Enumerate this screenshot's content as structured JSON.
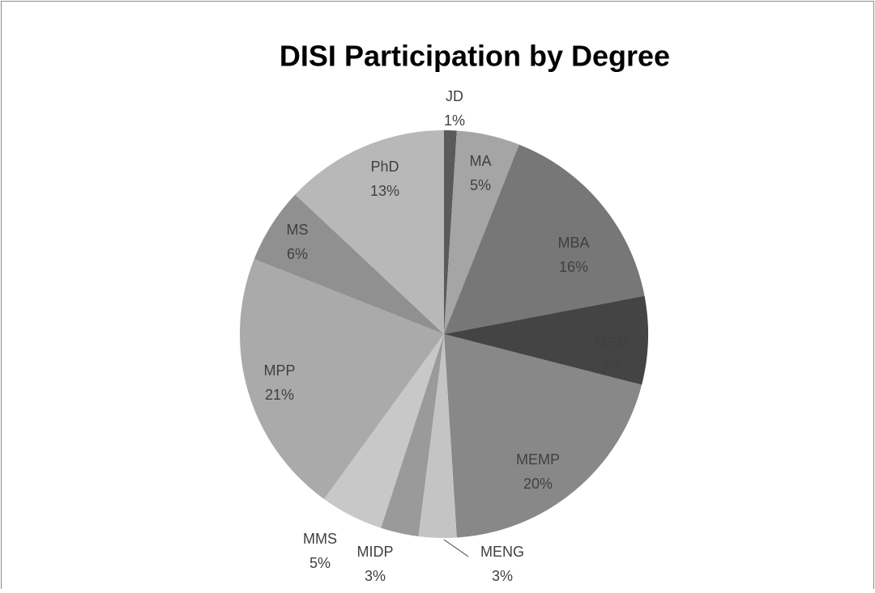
{
  "chart_data": {
    "type": "pie",
    "title": "DISI Participation by Degree",
    "categories": [
      "JD",
      "MA",
      "MBA",
      "MEM",
      "MEMP",
      "MENG",
      "MIDP",
      "MMS",
      "MPP",
      "MS",
      "PhD"
    ],
    "values": [
      1,
      5,
      16,
      7,
      20,
      3,
      3,
      5,
      21,
      6,
      13
    ],
    "value_labels": [
      "1%",
      "5%",
      "16%",
      "7%",
      "20%",
      "3%",
      "3%",
      "5%",
      "21%",
      "6%",
      "13%"
    ],
    "colors": [
      "#5a5a5a",
      "#a5a5a5",
      "#777777",
      "#444444",
      "#888888",
      "#c4c4c4",
      "#9a9a9a",
      "#c8c8c8",
      "#aaaaaa",
      "#909090",
      "#b8b8b8"
    ]
  }
}
